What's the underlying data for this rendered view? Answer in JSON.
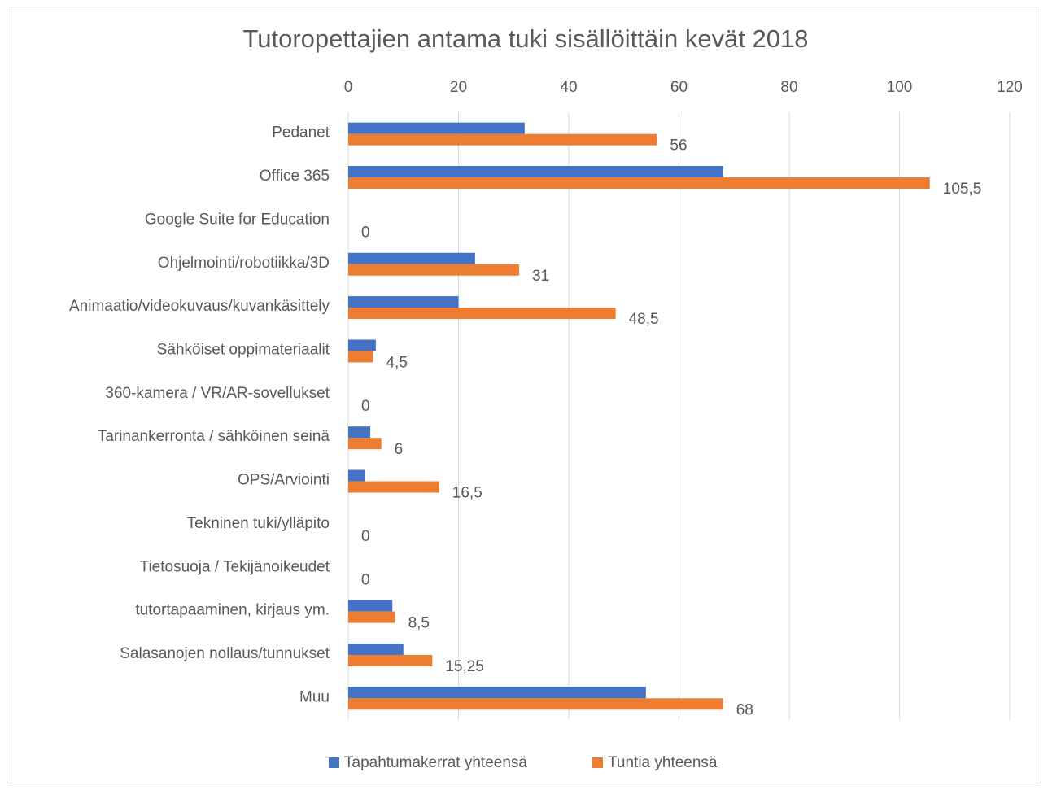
{
  "chart_data": {
    "type": "hbar",
    "title": "Tutoropettajien antama tuki sisällöittäin kevät 2018",
    "categories": [
      "Pedanet",
      "Office 365",
      "Google Suite for Education",
      "Ohjelmointi/robotiikka/3D",
      "Animaatio/videokuvaus/kuvankäsittely",
      "Sähköiset oppimateriaalit",
      "360-kamera / VR/AR-sovellukset",
      "Tarinankerronta / sähköinen seinä",
      "OPS/Arviointi",
      "Tekninen tuki/ylläpito",
      "Tietosuoja / Tekijänoikeudet",
      "tutortapaaminen, kirjaus ym.",
      "Salasanojen nollaus/tunnukset",
      "Muu"
    ],
    "series": [
      {
        "name": "Tapahtumakerrat yhteensä",
        "color": "#4472c4",
        "values": [
          32,
          68,
          0,
          23,
          20,
          5,
          0,
          4,
          3,
          0,
          0,
          8,
          10,
          54
        ]
      },
      {
        "name": "Tuntia yhteensä",
        "color": "#ed7d31",
        "values": [
          56,
          105.5,
          0,
          31,
          48.5,
          4.5,
          0,
          6,
          16.5,
          0,
          0,
          8.5,
          15.25,
          68
        ],
        "value_labels": [
          "56",
          "105,5",
          "0",
          "31",
          "48,5",
          "4,5",
          "0",
          "6",
          "16,5",
          "0",
          "0",
          "8,5",
          "15,25",
          "68"
        ]
      }
    ],
    "xlim": [
      0,
      120
    ],
    "xticks": [
      0,
      20,
      40,
      60,
      80,
      100,
      120
    ],
    "grid": true,
    "legend": "bottom"
  }
}
